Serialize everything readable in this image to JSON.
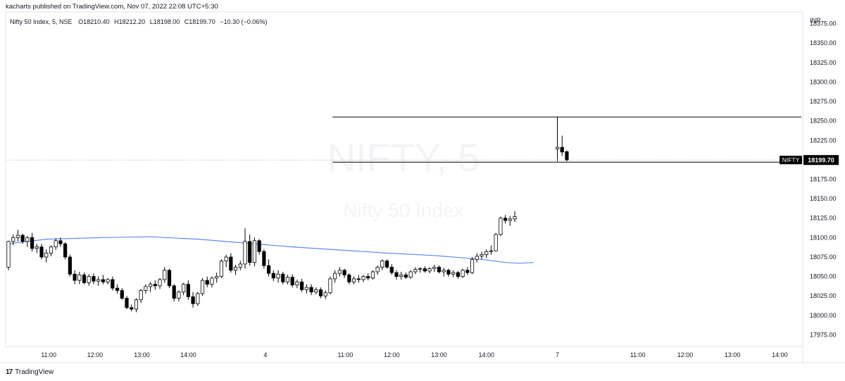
{
  "header": {
    "publisher_line": "kacharts published on TradingView.com, Nov 07, 2022 22:08 UTC+5:30"
  },
  "legend": {
    "symbol_desc": "Nifty 50 Index, 5, NSE",
    "open_label": "O",
    "open": "18210.40",
    "high_label": "H",
    "high": "18212.20",
    "low_label": "L",
    "low": "18198.00",
    "close_label": "C",
    "close": "18199.70",
    "change": "−10.30 (−0.06%)"
  },
  "watermark": {
    "symbol": "NIFTY, 5",
    "description": "Nifty 50 Index"
  },
  "price_axis": {
    "currency": "INR",
    "ticks": [
      "18375.00",
      "18350.00",
      "18325.00",
      "18300.00",
      "18275.00",
      "18250.00",
      "18225.00",
      "18175.00",
      "18150.00",
      "18125.00",
      "18100.00",
      "18075.00",
      "18050.00",
      "18025.00",
      "18000.00",
      "17975.00"
    ],
    "last_price_symbol": "NIFTY",
    "last_price": "18199.70"
  },
  "time_axis": {
    "ticks": [
      "11:00",
      "12:00",
      "13:00",
      "14:00",
      "4",
      "11:00",
      "12:00",
      "13:00",
      "14:00",
      "7",
      "11:00",
      "12:00",
      "13:00",
      "14:00"
    ]
  },
  "footer": {
    "brand": "TradingView",
    "logo_text": "17"
  },
  "colors": {
    "up_body": "#ffffff",
    "down_body": "#000000",
    "wick": "#000000",
    "moving_average": "#5b8def",
    "horizontal_lines": "#000000",
    "grid_border": "#e0e3eb",
    "price_tag_bg": "#000000",
    "price_tag_text": "#ffffff"
  },
  "chart_data": {
    "type": "candlestick",
    "interval": "5",
    "yrange": [
      17960,
      18390
    ],
    "last_price": 18199.7,
    "horizontal_levels": [
      18255,
      18197
    ],
    "candles": [
      [
        18062,
        18096,
        18058,
        18095
      ],
      [
        18095,
        18104,
        18090,
        18100
      ],
      [
        18100,
        18110,
        18095,
        18103
      ],
      [
        18103,
        18105,
        18092,
        18095
      ],
      [
        18095,
        18102,
        18088,
        18100
      ],
      [
        18100,
        18106,
        18082,
        18086
      ],
      [
        18086,
        18092,
        18080,
        18088
      ],
      [
        18088,
        18092,
        18072,
        18075
      ],
      [
        18075,
        18085,
        18068,
        18080
      ],
      [
        18080,
        18090,
        18076,
        18088
      ],
      [
        18088,
        18099,
        18084,
        18096
      ],
      [
        18096,
        18100,
        18088,
        18092
      ],
      [
        18092,
        18094,
        18072,
        18075
      ],
      [
        18075,
        18078,
        18050,
        18053
      ],
      [
        18053,
        18058,
        18040,
        18045
      ],
      [
        18045,
        18056,
        18040,
        18052
      ],
      [
        18052,
        18055,
        18040,
        18042
      ],
      [
        18042,
        18053,
        18038,
        18050
      ],
      [
        18050,
        18054,
        18040,
        18044
      ],
      [
        18044,
        18050,
        18038,
        18046
      ],
      [
        18046,
        18052,
        18040,
        18043
      ],
      [
        18043,
        18048,
        18040,
        18046
      ],
      [
        18046,
        18050,
        18032,
        18035
      ],
      [
        18035,
        18040,
        18028,
        18032
      ],
      [
        18032,
        18035,
        18020,
        18022
      ],
      [
        18022,
        18025,
        18008,
        18010
      ],
      [
        18010,
        18014,
        18005,
        18008
      ],
      [
        18008,
        18022,
        18004,
        18020
      ],
      [
        18020,
        18034,
        18016,
        18032
      ],
      [
        18032,
        18040,
        18028,
        18037
      ],
      [
        18037,
        18043,
        18030,
        18040
      ],
      [
        18040,
        18045,
        18033,
        18038
      ],
      [
        18038,
        18048,
        18034,
        18046
      ],
      [
        18046,
        18062,
        18042,
        18058
      ],
      [
        18058,
        18060,
        18035,
        18038
      ],
      [
        18038,
        18040,
        18018,
        18022
      ],
      [
        18022,
        18032,
        18018,
        18030
      ],
      [
        18030,
        18042,
        18026,
        18040
      ],
      [
        18040,
        18045,
        18020,
        18024
      ],
      [
        18024,
        18030,
        18010,
        18015
      ],
      [
        18015,
        18030,
        18012,
        18028
      ],
      [
        18028,
        18048,
        18025,
        18045
      ],
      [
        18045,
        18050,
        18036,
        18040
      ],
      [
        18040,
        18050,
        18036,
        18048
      ],
      [
        18048,
        18055,
        18042,
        18050
      ],
      [
        18050,
        18072,
        18048,
        18070
      ],
      [
        18070,
        18078,
        18062,
        18075
      ],
      [
        18075,
        18080,
        18055,
        18058
      ],
      [
        18058,
        18065,
        18052,
        18062
      ],
      [
        18062,
        18070,
        18058,
        18066
      ],
      [
        18066,
        18112,
        18060,
        18095
      ],
      [
        18095,
        18104,
        18064,
        18068
      ],
      [
        18068,
        18100,
        18063,
        18096
      ],
      [
        18096,
        18098,
        18078,
        18082
      ],
      [
        18082,
        18085,
        18060,
        18064
      ],
      [
        18064,
        18072,
        18050,
        18054
      ],
      [
        18054,
        18058,
        18044,
        18048
      ],
      [
        18048,
        18058,
        18042,
        18053
      ],
      [
        18053,
        18056,
        18040,
        18043
      ],
      [
        18043,
        18052,
        18040,
        18049
      ],
      [
        18049,
        18053,
        18036,
        18039
      ],
      [
        18039,
        18046,
        18035,
        18043
      ],
      [
        18043,
        18047,
        18030,
        18033
      ],
      [
        18033,
        18040,
        18028,
        18036
      ],
      [
        18036,
        18040,
        18026,
        18030
      ],
      [
        18030,
        18036,
        18027,
        18033
      ],
      [
        18033,
        18036,
        18022,
        18025
      ],
      [
        18025,
        18032,
        18021,
        18029
      ],
      [
        18029,
        18050,
        18027,
        18047
      ],
      [
        18047,
        18058,
        18042,
        18054
      ],
      [
        18054,
        18062,
        18050,
        18058
      ],
      [
        18058,
        18060,
        18048,
        18052
      ],
      [
        18052,
        18054,
        18040,
        18043
      ],
      [
        18043,
        18050,
        18040,
        18047
      ],
      [
        18047,
        18052,
        18042,
        18046
      ],
      [
        18046,
        18052,
        18043,
        18050
      ],
      [
        18050,
        18054,
        18045,
        18048
      ],
      [
        18048,
        18058,
        18046,
        18056
      ],
      [
        18056,
        18064,
        18052,
        18062
      ],
      [
        18062,
        18072,
        18058,
        18070
      ],
      [
        18070,
        18072,
        18060,
        18062
      ],
      [
        18062,
        18066,
        18052,
        18055
      ],
      [
        18055,
        18058,
        18046,
        18050
      ],
      [
        18050,
        18056,
        18046,
        18052
      ],
      [
        18052,
        18055,
        18047,
        18049
      ],
      [
        18049,
        18058,
        18047,
        18056
      ],
      [
        18056,
        18062,
        18053,
        18059
      ],
      [
        18059,
        18062,
        18055,
        18060
      ],
      [
        18060,
        18063,
        18055,
        18057
      ],
      [
        18057,
        18062,
        18054,
        18060
      ],
      [
        18060,
        18065,
        18056,
        18062
      ],
      [
        18062,
        18064,
        18054,
        18056
      ],
      [
        18056,
        18061,
        18050,
        18058
      ],
      [
        18058,
        18060,
        18050,
        18053
      ],
      [
        18053,
        18058,
        18049,
        18055
      ],
      [
        18055,
        18057,
        18047,
        18050
      ],
      [
        18050,
        18060,
        18048,
        18058
      ],
      [
        18058,
        18062,
        18052,
        18055
      ],
      [
        18055,
        18075,
        18053,
        18072
      ],
      [
        18072,
        18080,
        18068,
        18076
      ],
      [
        18076,
        18082,
        18072,
        18078
      ],
      [
        18078,
        18085,
        18074,
        18082
      ],
      [
        18082,
        18090,
        18078,
        18083
      ],
      [
        18083,
        18106,
        18082,
        18104
      ],
      [
        18104,
        18127,
        18102,
        18125
      ],
      [
        18125,
        18129,
        18118,
        18122
      ],
      [
        18122,
        18128,
        18115,
        18124
      ],
      [
        18124,
        18134,
        18120,
        18127
      ],
      [
        18214,
        18255,
        18198,
        18216
      ],
      [
        18216,
        18231,
        18205,
        18210
      ],
      [
        18210.4,
        18212.2,
        18198,
        18199.7
      ]
    ],
    "moving_average": [
      [
        0,
        18092
      ],
      [
        8,
        18098
      ],
      [
        20,
        18100
      ],
      [
        30,
        18101
      ],
      [
        40,
        18098
      ],
      [
        50,
        18093
      ],
      [
        60,
        18088
      ],
      [
        70,
        18084
      ],
      [
        80,
        18080
      ],
      [
        90,
        18077
      ],
      [
        100,
        18072
      ],
      [
        105,
        18068
      ],
      [
        108,
        18067
      ],
      [
        111,
        18068
      ]
    ]
  }
}
